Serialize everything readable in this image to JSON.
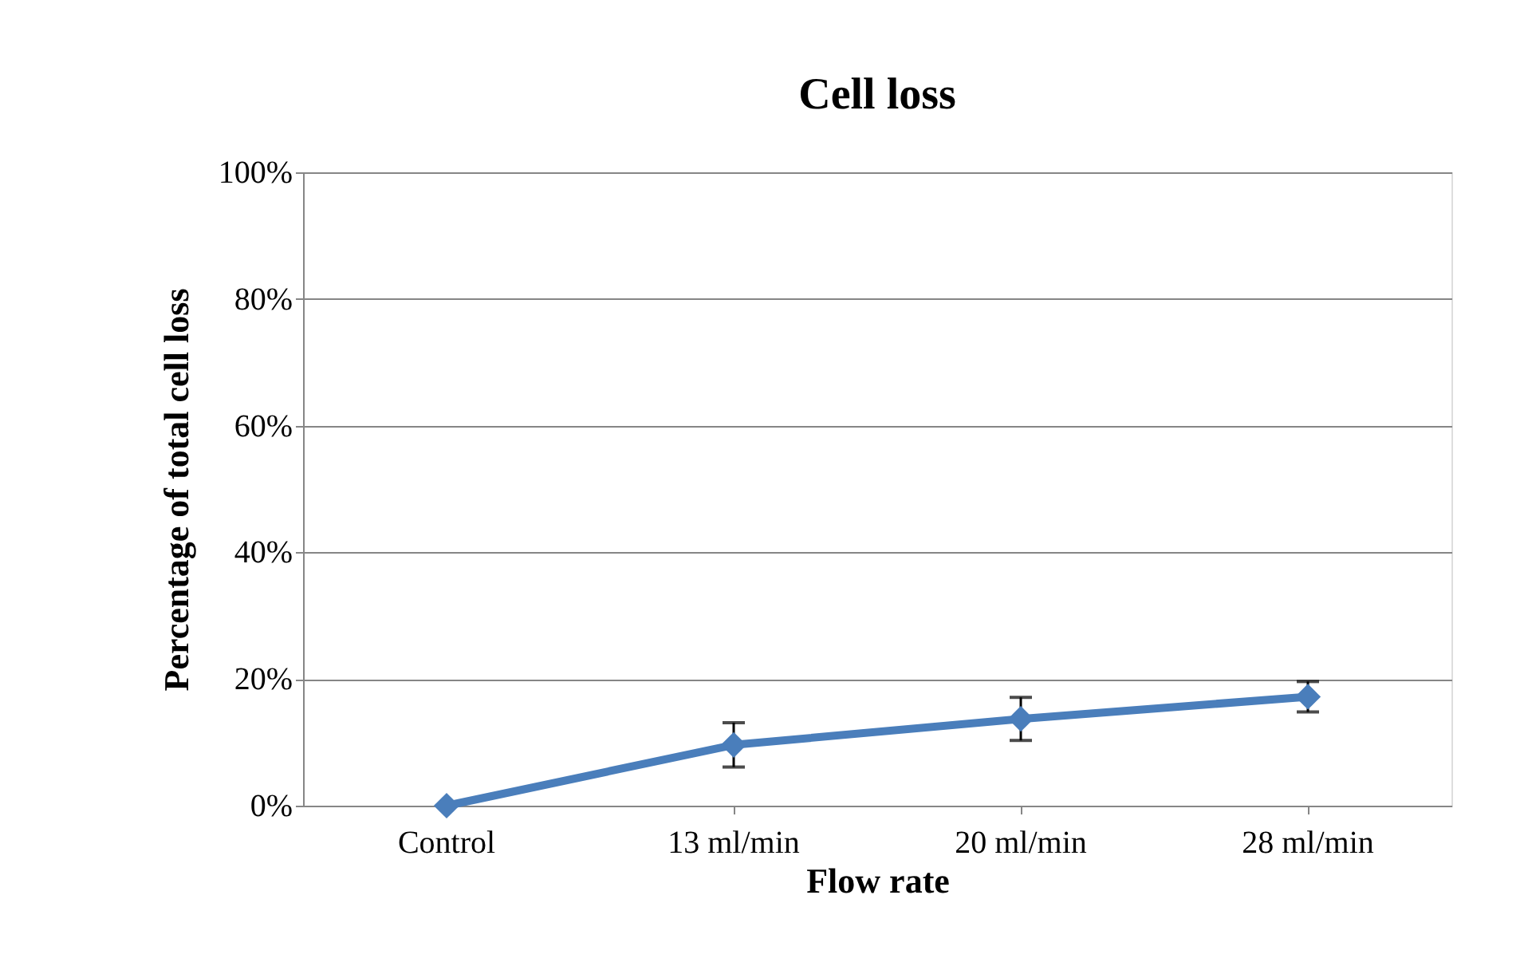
{
  "chart_data": {
    "type": "line",
    "title": "Cell loss",
    "xlabel": "Flow rate",
    "ylabel": "Percentage of total cell loss",
    "categories": [
      "Control",
      "13 ml/min",
      "20 ml/min",
      "28 ml/min"
    ],
    "series": [
      {
        "color": "#4a7ebb",
        "values": [
          0,
          9.6,
          13.7,
          17.2
        ],
        "errors": [
          null,
          3.5,
          3.4,
          2.4
        ]
      }
    ],
    "ylim": [
      0,
      100
    ],
    "yticks": [
      {
        "value": 0,
        "label": "0%"
      },
      {
        "value": 20,
        "label": "20%"
      },
      {
        "value": 40,
        "label": "40%"
      },
      {
        "value": 60,
        "label": "60%"
      },
      {
        "value": 80,
        "label": "80%"
      },
      {
        "value": 100,
        "label": "100%"
      }
    ],
    "grid": "y",
    "marker": "diamond",
    "line_style": "solid"
  }
}
